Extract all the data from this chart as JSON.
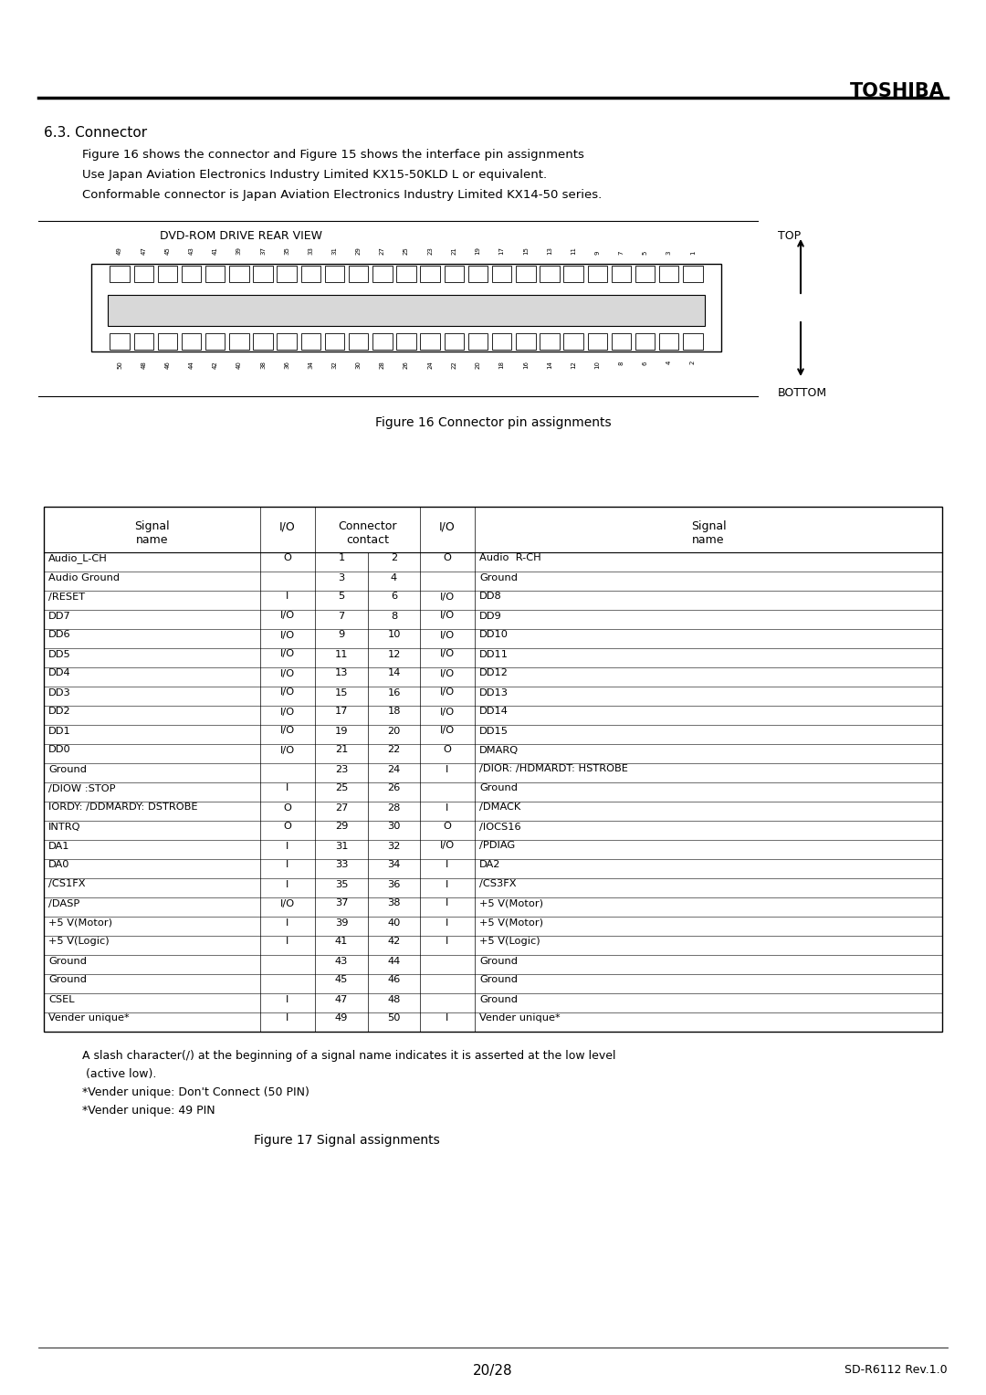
{
  "title_brand": "TOSHIBA",
  "section_heading": "6.3. Connector",
  "section_text": [
    "Figure 16 shows the connector and Figure 15 shows the interface pin assignments",
    "Use Japan Aviation Electronics Industry Limited KX15-50KLD L or equivalent.",
    "Conformable connector is Japan Aviation Electronics Industry Limited KX14-50 series."
  ],
  "connector_label": "DVD-ROM DRIVE REAR VIEW",
  "top_label": "TOP",
  "bottom_label": "BOTTOM",
  "fig16_caption": "Figure 16 Connector pin assignments",
  "fig17_caption": "Figure 17 Signal assignments",
  "top_pins": [
    "49",
    "47",
    "45",
    "43",
    "41",
    "39",
    "37",
    "35",
    "33",
    "31",
    "29",
    "27",
    "25",
    "23",
    "21",
    "19",
    "17",
    "15",
    "13",
    "11",
    "9",
    "7",
    "5",
    "3",
    "1"
  ],
  "bottom_pins": [
    "50",
    "48",
    "46",
    "44",
    "42",
    "40",
    "38",
    "36",
    "34",
    "32",
    "30",
    "28",
    "26",
    "24",
    "22",
    "20",
    "18",
    "16",
    "14",
    "12",
    "10",
    "8",
    "6",
    "4",
    "2"
  ],
  "table_rows": [
    [
      "Audio_L-CH",
      "O",
      "1",
      "2",
      "O",
      "Audio  R-CH"
    ],
    [
      "Audio Ground",
      "",
      "3",
      "4",
      "",
      "Ground"
    ],
    [
      "/RESET",
      "I",
      "5",
      "6",
      "I/O",
      "DD8"
    ],
    [
      "DD7",
      "I/O",
      "7",
      "8",
      "I/O",
      "DD9"
    ],
    [
      "DD6",
      "I/O",
      "9",
      "10",
      "I/O",
      "DD10"
    ],
    [
      "DD5",
      "I/O",
      "11",
      "12",
      "I/O",
      "DD11"
    ],
    [
      "DD4",
      "I/O",
      "13",
      "14",
      "I/O",
      "DD12"
    ],
    [
      "DD3",
      "I/O",
      "15",
      "16",
      "I/O",
      "DD13"
    ],
    [
      "DD2",
      "I/O",
      "17",
      "18",
      "I/O",
      "DD14"
    ],
    [
      "DD1",
      "I/O",
      "19",
      "20",
      "I/O",
      "DD15"
    ],
    [
      "DD0",
      "I/O",
      "21",
      "22",
      "O",
      "DMARQ"
    ],
    [
      "Ground",
      "",
      "23",
      "24",
      "I",
      "/DIOR: /HDMARDT: HSTROBE"
    ],
    [
      "/DIOW :STOP",
      "I",
      "25",
      "26",
      "",
      "Ground"
    ],
    [
      "IORDY: /DDMARDY: DSTROBE",
      "O",
      "27",
      "28",
      "I",
      "/DMACK"
    ],
    [
      "INTRQ",
      "O",
      "29",
      "30",
      "O",
      "/IOCS16"
    ],
    [
      "DA1",
      "I",
      "31",
      "32",
      "I/O",
      "/PDIAG"
    ],
    [
      "DA0",
      "I",
      "33",
      "34",
      "I",
      "DA2"
    ],
    [
      "/CS1FX",
      "I",
      "35",
      "36",
      "I",
      "/CS3FX"
    ],
    [
      "/DASP",
      "I/O",
      "37",
      "38",
      "I",
      "+5 V(Motor)"
    ],
    [
      "+5 V(Motor)",
      "I",
      "39",
      "40",
      "I",
      "+5 V(Motor)"
    ],
    [
      "+5 V(Logic)",
      "I",
      "41",
      "42",
      "I",
      "+5 V(Logic)"
    ],
    [
      "Ground",
      "",
      "43",
      "44",
      "",
      "Ground"
    ],
    [
      "Ground",
      "",
      "45",
      "46",
      "",
      "Ground"
    ],
    [
      "CSEL",
      "I",
      "47",
      "48",
      "",
      "Ground"
    ],
    [
      "Vender unique*",
      "I",
      "49",
      "50",
      "I",
      "Vender unique*"
    ]
  ],
  "footer_notes": [
    "A slash character(/) at the beginning of a signal name indicates it is asserted at the low level",
    " (active low).",
    "*Vender unique: Don't Connect (50 PIN)",
    "*Vender unique: 49 PIN"
  ],
  "page_number": "20/28",
  "doc_ref": "SD-R6112 Rev.1.0"
}
